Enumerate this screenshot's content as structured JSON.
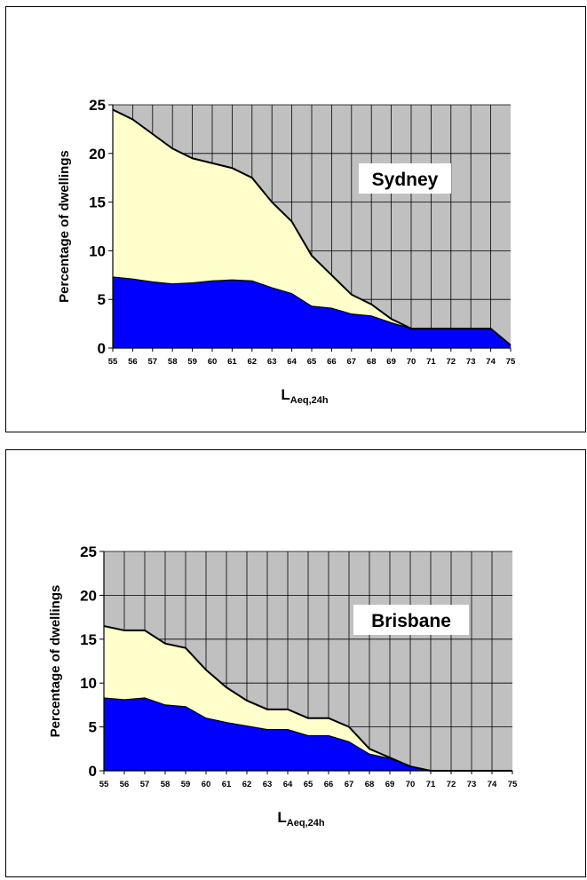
{
  "colors": {
    "plot_bg": "#c0c0c0",
    "grid": "#000000",
    "upper_fill": "#ffffcc",
    "lower_fill": "#0000ff",
    "outline": "#000000"
  },
  "chart_data": [
    {
      "type": "area",
      "title": "Sydney",
      "ylabel": "Percentage of dwellings",
      "xlabel_main": "L",
      "xlabel_sub": "Aeq,24h",
      "ylim": [
        0,
        25
      ],
      "yticks": [
        0,
        5,
        10,
        15,
        20,
        25
      ],
      "x": [
        55,
        56,
        57,
        58,
        59,
        60,
        61,
        62,
        63,
        64,
        65,
        66,
        67,
        68,
        69,
        70,
        71,
        72,
        73,
        74,
        75
      ],
      "series": [
        {
          "values": [
            7.3,
            7.1,
            6.8,
            6.6,
            6.7,
            6.9,
            7.0,
            6.9,
            6.2,
            5.6,
            4.3,
            4.1,
            3.5,
            3.3,
            2.6,
            2.0,
            2.0,
            2.0,
            2.0,
            2.0,
            0.3
          ]
        },
        {
          "values": [
            24.5,
            23.5,
            22.0,
            20.5,
            19.5,
            19.0,
            18.5,
            17.5,
            15.0,
            13.0,
            9.5,
            7.5,
            5.5,
            4.5,
            3.0,
            2.0,
            2.0,
            2.0,
            2.0,
            2.0,
            0.3
          ]
        }
      ],
      "grid": true
    },
    {
      "type": "area",
      "title": "Brisbane",
      "ylabel": "Percentage of dwellings",
      "xlabel_main": "L",
      "xlabel_sub": "Aeq,24h",
      "ylim": [
        0,
        25
      ],
      "yticks": [
        0,
        5,
        10,
        15,
        20,
        25
      ],
      "x": [
        55,
        56,
        57,
        58,
        59,
        60,
        61,
        62,
        63,
        64,
        65,
        66,
        67,
        68,
        69,
        70,
        71,
        72,
        73,
        74,
        75
      ],
      "series": [
        {
          "values": [
            8.3,
            8.1,
            8.3,
            7.5,
            7.3,
            6.0,
            5.5,
            5.1,
            4.7,
            4.7,
            4.0,
            4.0,
            3.3,
            1.9,
            1.4,
            0.5,
            0,
            0,
            0,
            0,
            0
          ]
        },
        {
          "values": [
            16.5,
            16.0,
            16.0,
            14.5,
            14.0,
            11.5,
            9.5,
            8.0,
            7.0,
            7.0,
            6.0,
            6.0,
            5.0,
            2.5,
            1.5,
            0.5,
            0,
            0,
            0,
            0,
            0
          ]
        }
      ],
      "grid": true
    }
  ]
}
